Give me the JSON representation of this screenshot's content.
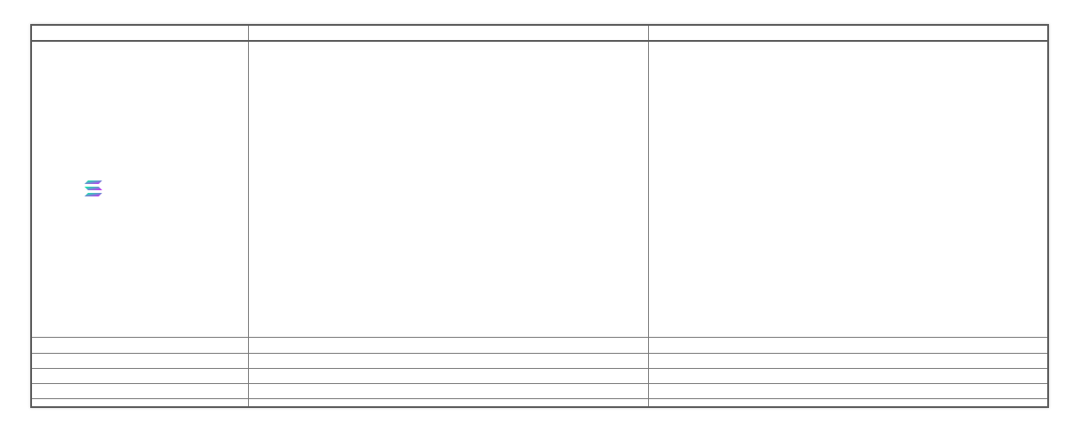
{
  "table": {
    "header": [
      "",
      "",
      ""
    ],
    "rows": [
      {
        "icon": "solana-logo-icon",
        "cells": [
          "",
          "",
          ""
        ]
      },
      {
        "cells": [
          "",
          "",
          ""
        ]
      },
      {
        "cells": [
          "",
          "",
          ""
        ]
      },
      {
        "cells": [
          "",
          "",
          ""
        ]
      },
      {
        "cells": [
          "",
          "",
          ""
        ]
      },
      {
        "cells": [
          "",
          "",
          ""
        ]
      }
    ]
  },
  "colors": {
    "border": "#5a5a5a",
    "grid_line": "#7a7a7a",
    "logo_gradient_start": "#00ffa3",
    "logo_gradient_end": "#dc1fff"
  }
}
